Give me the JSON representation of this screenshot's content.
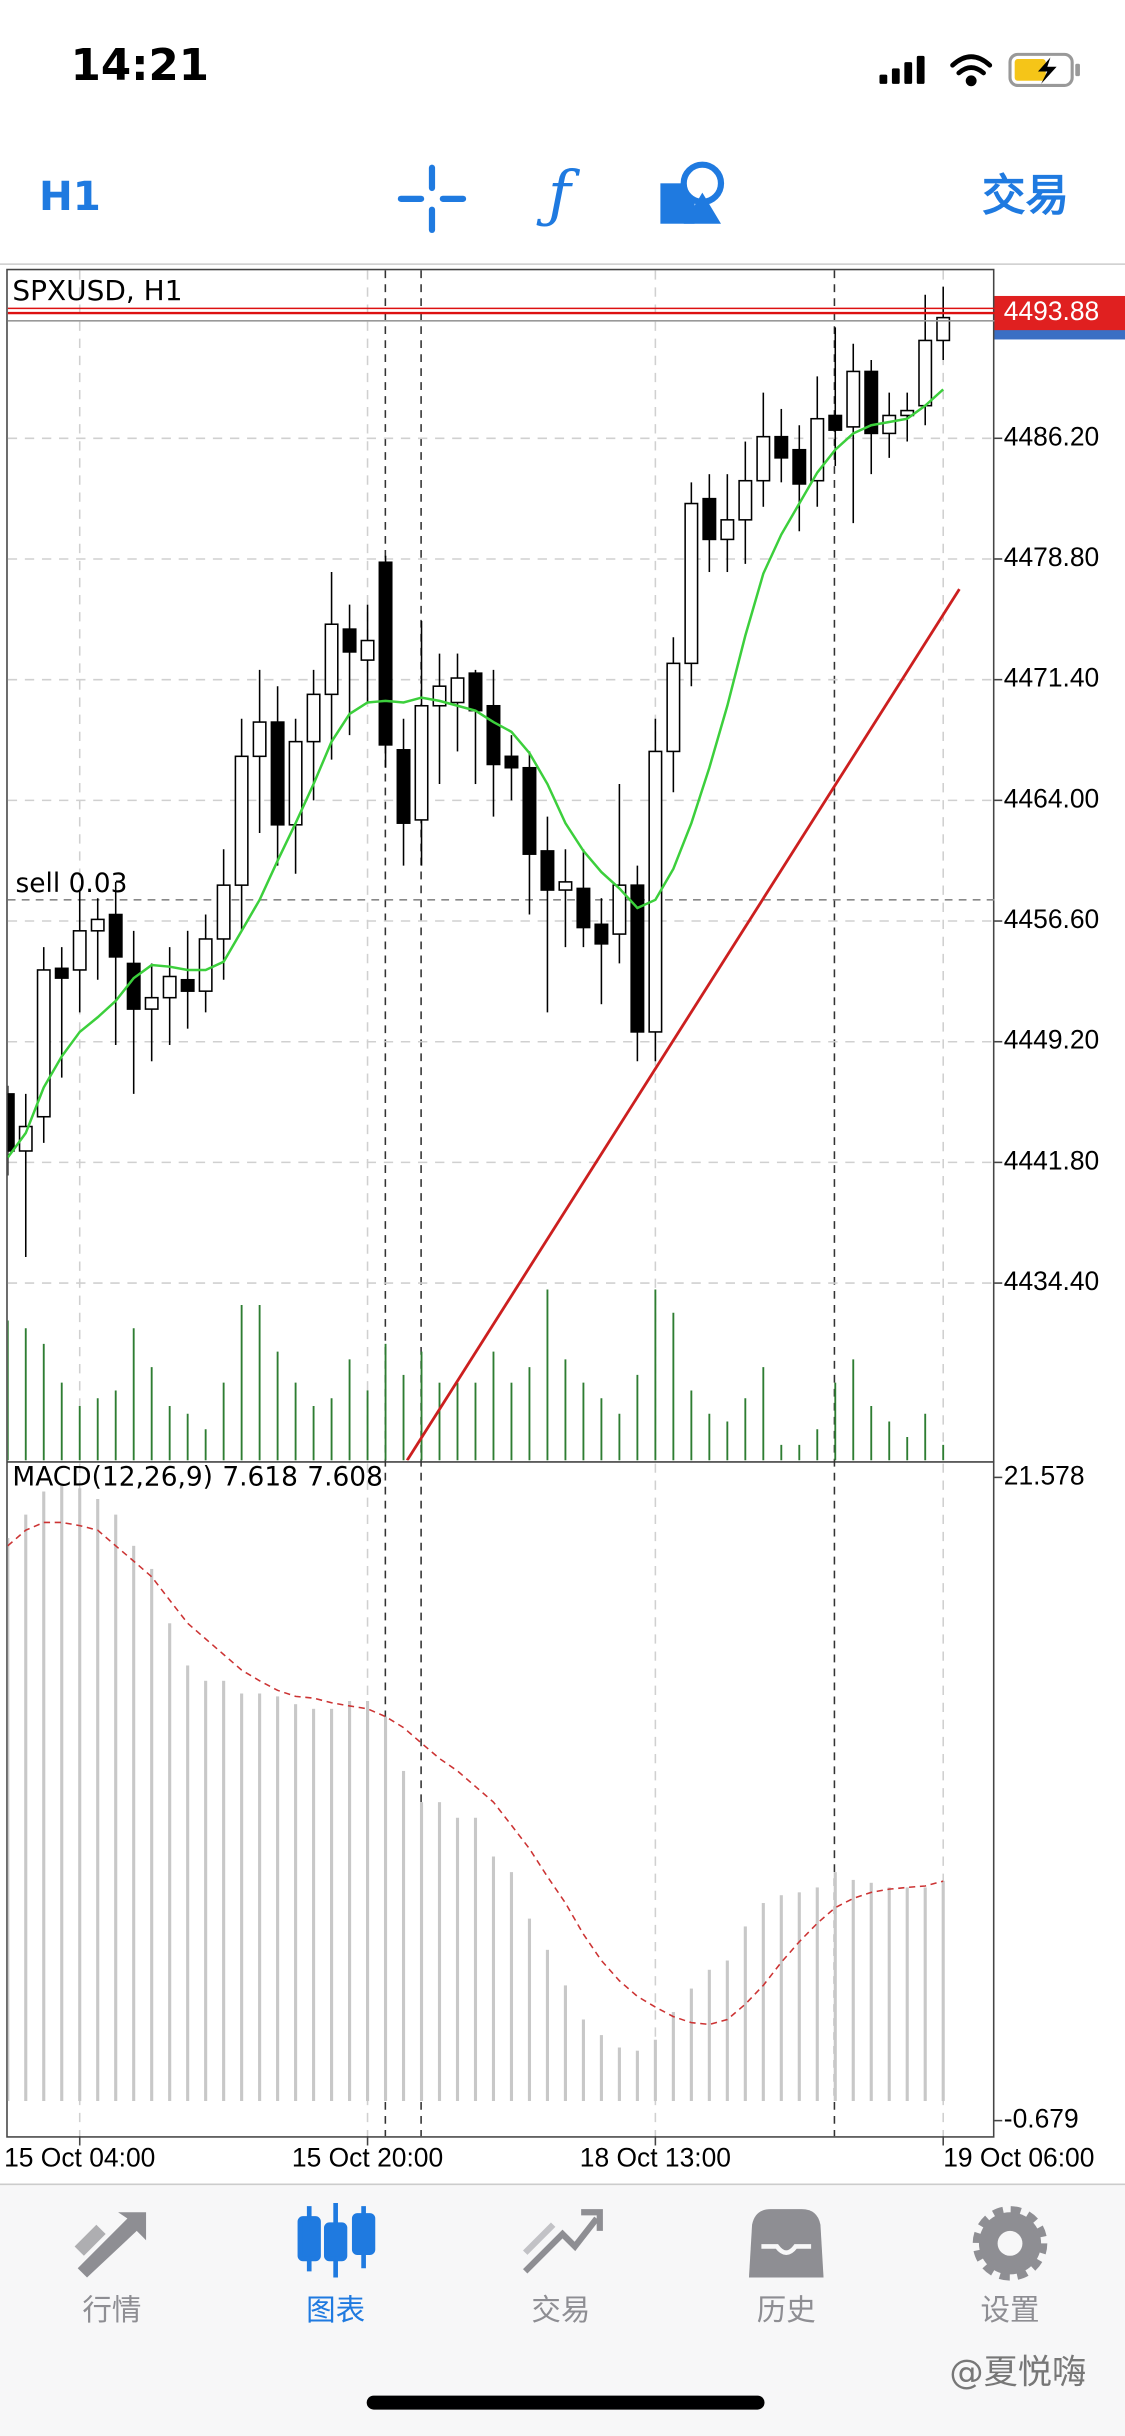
{
  "status_bar": {
    "time": "14:21"
  },
  "toolbar": {
    "timeframe": "H1",
    "trade": "交易"
  },
  "chart_data": [
    {
      "type": "candlestick",
      "title": "SPXUSD, H1",
      "categories": [
        null,
        null,
        null,
        null,
        "15 Oct 04:00",
        null,
        null,
        null,
        null,
        null,
        null,
        null,
        null,
        null,
        null,
        null,
        null,
        null,
        null,
        null,
        "15 Oct 20:00",
        null,
        null,
        null,
        null,
        null,
        null,
        null,
        null,
        null,
        null,
        null,
        null,
        null,
        null,
        null,
        "18 Oct 13:00",
        null,
        null,
        null,
        null,
        null,
        null,
        null,
        null,
        null,
        null,
        null,
        null,
        null,
        null,
        null,
        "19 Oct 06:00"
      ],
      "open": [
        4446,
        4442.5,
        4444.6,
        4453.7,
        4453.6,
        4456,
        4457,
        4454,
        4451.2,
        4451.9,
        4453,
        4452.3,
        4455.5,
        4458.8,
        4466.7,
        4468.8,
        4462.5,
        4467.6,
        4470.5,
        4474.5,
        4472.6,
        4478.6,
        4467.1,
        4462.8,
        4469.8,
        4470,
        4471.8,
        4469.8,
        4466.7,
        4466,
        4460.9,
        4458.5,
        4458.6,
        4456.4,
        4455.8,
        4458.8,
        4449.8,
        4467,
        4472.4,
        4482.5,
        4480,
        4481.2,
        4483.6,
        4486.3,
        4485.5,
        4483.6,
        4487.6,
        4486.9,
        4490.3,
        4486.5,
        4487.6,
        4488.2,
        4492.2
      ],
      "high": [
        4446.5,
        4446,
        4455,
        4455,
        4458.5,
        4458,
        4459,
        4456,
        4454,
        4455,
        4456,
        4457,
        4461,
        4469,
        4472,
        4471,
        4469,
        4472,
        4478,
        4476,
        4476,
        4479,
        4469,
        4475,
        4473,
        4473,
        4472,
        4472,
        4468,
        4467,
        4463,
        4461,
        4461,
        4458,
        4465,
        4460,
        4469,
        4474,
        4483.5,
        4484,
        4484,
        4486,
        4489,
        4488,
        4487,
        4490,
        4493,
        4492,
        4491,
        4489,
        4489,
        4495,
        4495.5
      ],
      "low": [
        4441,
        4436,
        4443,
        4447,
        4451,
        4453,
        4449,
        4446,
        4448,
        4449,
        4450,
        4451,
        4453,
        4456,
        4462,
        4460,
        4459.5,
        4464,
        4466.5,
        4468,
        4470,
        4466,
        4460,
        4460,
        4465,
        4467,
        4465,
        4463,
        4464,
        4457,
        4451,
        4455,
        4455,
        4451.5,
        4454,
        4448,
        4448,
        4464.5,
        4471,
        4478,
        4478,
        4478.5,
        4482,
        4483.5,
        4480.5,
        4482,
        4484.5,
        4481,
        4484,
        4485,
        4486,
        4487,
        4491
      ],
      "close": [
        4442.5,
        4444,
        4453.6,
        4453.1,
        4456,
        4456.7,
        4454.4,
        4451.2,
        4451.9,
        4453.2,
        4452.3,
        4455.5,
        4458.8,
        4466.7,
        4468.8,
        4462.5,
        4467.6,
        4470.5,
        4474.8,
        4473.1,
        4473.8,
        4467.4,
        4462.6,
        4469.8,
        4471,
        4471.5,
        4469.5,
        4466.2,
        4466,
        4460.7,
        4458.5,
        4459,
        4456.2,
        4455.2,
        4458.8,
        4449.8,
        4467,
        4472.4,
        4482.2,
        4480,
        4481.2,
        4483.6,
        4486.3,
        4485,
        4483.4,
        4487.4,
        4486.7,
        4490.3,
        4486.5,
        4487.6,
        4487.9,
        4492.2,
        4493.6
      ],
      "up_color": "#ffffff",
      "down_color": "#000000",
      "ma": {
        "color": "#3ccf3c",
        "values": [
          4442.1,
          4443.6,
          4446.4,
          4448.3,
          4449.8,
          4450.7,
          4451.7,
          4453.1,
          4453.9,
          4453.8,
          4453.6,
          4453.6,
          4454.1,
          4456.0,
          4457.9,
          4460.3,
          4462.6,
          4465.0,
          4467.6,
          4469.3,
          4470.0,
          4470.1,
          4470.0,
          4470.3,
          4470.1,
          4469.8,
          4469.5,
          4468.8,
          4468.2,
          4466.9,
          4465.0,
          4462.6,
          4460.9,
          4459.6,
          4458.6,
          4457.4,
          4457.9,
          4459.8,
          4462.6,
          4466.0,
          4469.8,
          4474.1,
          4477.9,
          4480.3,
          4482.2,
          4484.1,
          4485.5,
          4486.5,
          4487.0,
          4487.2,
          4487.4,
          4488.2,
          4489.2
        ]
      },
      "volume": {
        "color": "#2e7d32",
        "ylim": [
          0,
          120
        ],
        "values": [
          90,
          85,
          75,
          50,
          35,
          40,
          45,
          85,
          60,
          35,
          30,
          20,
          50,
          100,
          100,
          70,
          50,
          35,
          40,
          65,
          45,
          75,
          55,
          70,
          50,
          50,
          50,
          70,
          50,
          60,
          110,
          65,
          50,
          40,
          30,
          55,
          110,
          95,
          45,
          30,
          25,
          40,
          60,
          10,
          10,
          20,
          50,
          65,
          35,
          25,
          15,
          30,
          10
        ]
      },
      "ylim": [
        4423.53,
        4496.5
      ],
      "yticks": [
        {
          "value": 4486.2,
          "label": "4486.20"
        },
        {
          "value": 4478.8,
          "label": "4478.80"
        },
        {
          "value": 4471.4,
          "label": "4471.40"
        },
        {
          "value": 4464,
          "label": "4464.00"
        },
        {
          "value": 4456.6,
          "label": "4456.60"
        },
        {
          "value": 4449.2,
          "label": "4449.20"
        },
        {
          "value": 4441.8,
          "label": "4441.80"
        },
        {
          "value": 4434.4,
          "label": "4434.40"
        }
      ],
      "current_price": 4493.88,
      "order_line": {
        "label": "sell 0.03",
        "value": 4457.9
      },
      "trendline": {
        "color": "#cc1f1f",
        "x": [
          22.2,
          52.9
        ],
        "y": [
          4423.53,
          4476.95
        ]
      },
      "grid": true
    },
    {
      "type": "macd",
      "title": "MACD(12,26,9)",
      "values": [
        19.48,
        20.29,
        21.09,
        21.36,
        21.2,
        20.83,
        20.29,
        19.21,
        18.41,
        16.53,
        15.07,
        14.54,
        14.54,
        14.1,
        14.1,
        14.0,
        13.73,
        13.57,
        13.57,
        13.84,
        13.84,
        13.3,
        11.42,
        10.34,
        10.34,
        9.8,
        9.8,
        8.46,
        7.92,
        6.31,
        5.23,
        4.0,
        2.82,
        2.28,
        1.85,
        1.74,
        2.12,
        3.08,
        3.89,
        4.54,
        4.86,
        6.04,
        6.85,
        7.12,
        7.22,
        7.39,
        7.92,
        7.65,
        7.55,
        7.39,
        7.39,
        7.39,
        7.618
      ],
      "signal": [
        19.21,
        19.75,
        20.02,
        20.02,
        19.91,
        19.75,
        19.21,
        18.68,
        18.14,
        17.33,
        16.53,
        15.99,
        15.45,
        14.91,
        14.54,
        14.21,
        14.0,
        13.94,
        13.78,
        13.67,
        13.57,
        13.3,
        12.92,
        12.38,
        11.85,
        11.42,
        10.88,
        10.34,
        9.54,
        8.73,
        7.76,
        6.85,
        5.77,
        4.86,
        4.16,
        3.62,
        3.25,
        2.92,
        2.71,
        2.65,
        2.82,
        3.35,
        4.0,
        4.8,
        5.51,
        6.15,
        6.69,
        7.01,
        7.22,
        7.33,
        7.39,
        7.44,
        7.608
      ],
      "bar_color": "#c8c8c8",
      "signal_color": "#cc3333",
      "ylim": [
        -1.217,
        22.06
      ],
      "yticks": [
        21.578,
        -0.679
      ]
    }
  ],
  "tab_bar": {
    "items": [
      "行情",
      "图表",
      "交易",
      "历史",
      "设置"
    ],
    "active": 1
  },
  "watermark": "@夏悦嗨"
}
